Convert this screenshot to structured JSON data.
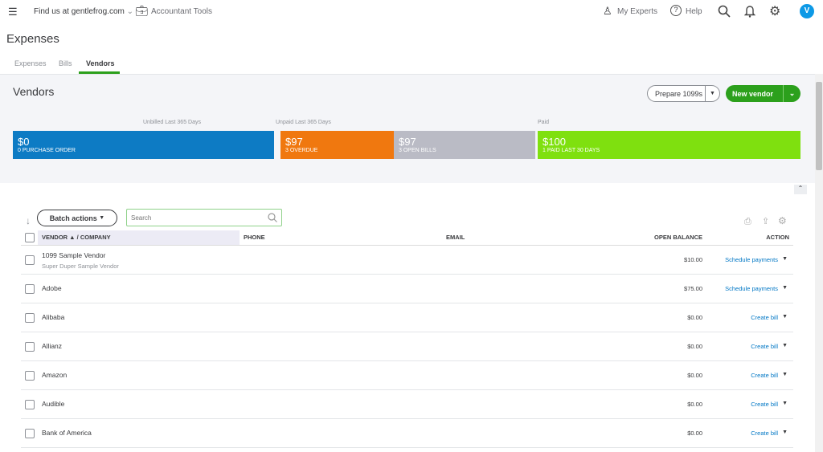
{
  "topbar": {
    "company": "Find us at gentlefrog.com",
    "accountant_tools": "Accountant Tools",
    "my_experts": "My Experts",
    "help": "Help",
    "avatar": "V"
  },
  "page": {
    "title": "Expenses",
    "tabs": [
      {
        "label": "Expenses"
      },
      {
        "label": "Bills"
      },
      {
        "label": "Vendors",
        "active": true
      }
    ]
  },
  "vendors": {
    "title": "Vendors",
    "prepare_1099": "Prepare 1099s",
    "new_vendor": "New vendor"
  },
  "summary": {
    "captions": {
      "unbilled": "Unbilled Last 365 Days",
      "unpaid": "Unpaid Last 365 Days",
      "paid": "Paid"
    },
    "cards": [
      {
        "amount": "$0",
        "label": "0 PURCHASE ORDER",
        "color": "#0d7bc4"
      },
      {
        "amount": "$97",
        "label": "3 OVERDUE",
        "color": "#f0780f"
      },
      {
        "amount": "$97",
        "label": "3 OPEN BILLS",
        "color": "#babbc5"
      },
      {
        "amount": "$100",
        "label": "1 PAID LAST 30 DAYS",
        "color": "#7fe00f"
      }
    ]
  },
  "table": {
    "batch_actions": "Batch actions",
    "search_placeholder": "Search",
    "columns": {
      "vendor": "VENDOR ▲ / COMPANY",
      "phone": "PHONE",
      "email": "EMAIL",
      "balance": "OPEN BALANCE",
      "action": "ACTION"
    },
    "rows": [
      {
        "name": "1099 Sample Vendor",
        "company": "Super Duper Sample Vendor",
        "balance": "$10.00",
        "action": "Schedule payments"
      },
      {
        "name": "Adobe",
        "company": "",
        "balance": "$75.00",
        "action": "Schedule payments"
      },
      {
        "name": "Alibaba",
        "company": "",
        "balance": "$0.00",
        "action": "Create bill"
      },
      {
        "name": "Allianz",
        "company": "",
        "balance": "$0.00",
        "action": "Create bill"
      },
      {
        "name": "Amazon",
        "company": "",
        "balance": "$0.00",
        "action": "Create bill"
      },
      {
        "name": "Audible",
        "company": "",
        "balance": "$0.00",
        "action": "Create bill"
      },
      {
        "name": "Bank of America",
        "company": "",
        "balance": "$0.00",
        "action": "Create bill"
      }
    ]
  }
}
